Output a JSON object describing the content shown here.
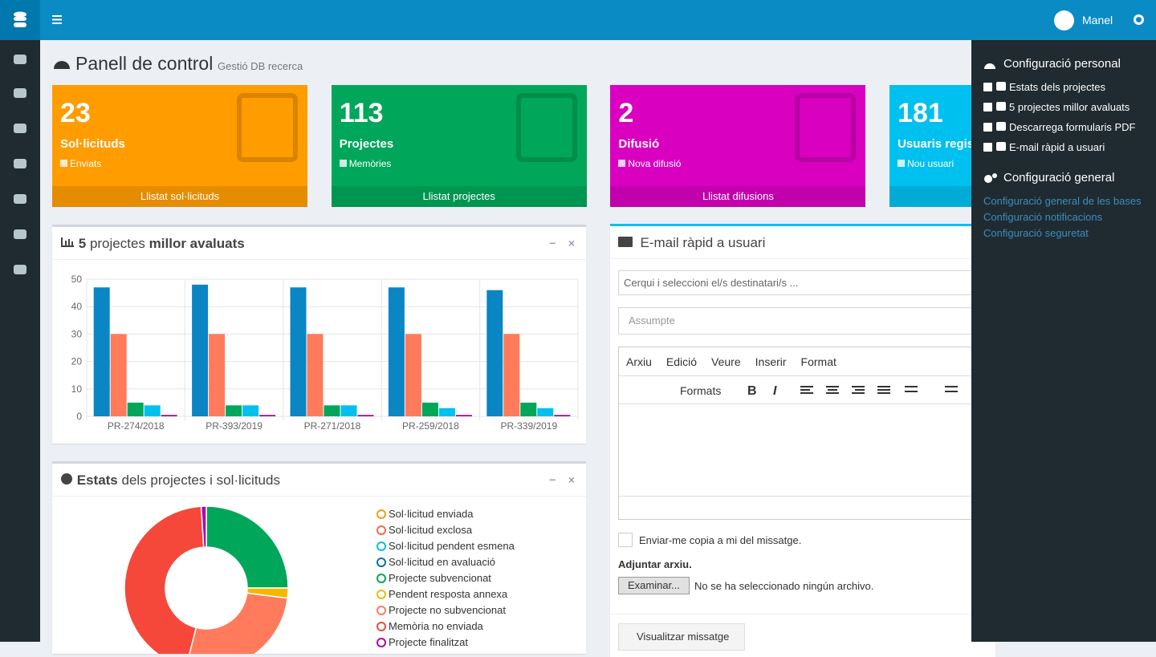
{
  "header": {
    "user": "Manel"
  },
  "page": {
    "title": "Panell de control",
    "subtitle": "Gestió DB recerca"
  },
  "stat_boxes": [
    {
      "value": 23,
      "title": "Sol·licituds",
      "subtitle": "Enviats",
      "link": "Llistat sol·licituds",
      "color": "#ff9c00"
    },
    {
      "value": 113,
      "title": "Projectes",
      "subtitle": "Memòries",
      "link": "Llistat projectes",
      "color": "#00a65a"
    },
    {
      "value": 2,
      "title": "Difusió",
      "subtitle": "Nova difusió",
      "link": "Llistat difusions",
      "color": "#d900c0"
    },
    {
      "value": 181,
      "title": "Usuaris registrats",
      "subtitle": "Nou usuari",
      "color": "#00c0ef"
    }
  ],
  "chart_data": [
    {
      "type": "bar",
      "title_parts": [
        "5",
        "projectes",
        "millor avaluats"
      ],
      "categories": [
        "PR-274/2018",
        "PR-393/2019",
        "PR-271/2018",
        "PR-259/2018",
        "PR-339/2019"
      ],
      "series": [
        {
          "color": "#0a86c4",
          "values": [
            47,
            48,
            47,
            47,
            46
          ]
        },
        {
          "color": "#ff7b5c",
          "values": [
            30,
            30,
            30,
            30,
            30
          ]
        },
        {
          "color": "#00a65a",
          "values": [
            5,
            4,
            4,
            5,
            5
          ]
        },
        {
          "color": "#00c0ef",
          "values": [
            4,
            4,
            4,
            3,
            3
          ]
        },
        {
          "color": "#a0009a",
          "values": [
            0.5,
            0.5,
            0.5,
            0.5,
            0.5
          ]
        }
      ],
      "ylim": [
        0,
        50
      ],
      "yticks": [
        0,
        10,
        20,
        30,
        40,
        50
      ],
      "grid": true
    },
    {
      "type": "pie",
      "title_parts": [
        "Estats",
        "dels projectes i sol·licituds"
      ],
      "categories": [
        "Sol·licitud enviada",
        "Sol·licitud exclosa",
        "Sol·licitud pendent esmena",
        "Sol·licitud en avaluació",
        "Projecte subvencionat",
        "Pendent resposta annexa",
        "Projecte no subvencionat",
        "Memòria no enviada",
        "Projecte finalitzat"
      ],
      "values": [
        0,
        0,
        0,
        0,
        25,
        2,
        27,
        45,
        1
      ],
      "colors": [
        "#f39c12",
        "#f56954",
        "#00c0ef",
        "#0073b7",
        "#00a65a",
        "#f5b800",
        "#ff7b5c",
        "#f5483b",
        "#b000b0"
      ]
    }
  ],
  "email": {
    "title": "E-mail ràpid a usuari",
    "recipients": "Cerqui i seleccioni el/s destinatari/s ...",
    "subject": "Assumpte",
    "menu": [
      "Arxiu",
      "Edició",
      "Veure",
      "Inserir",
      "Format"
    ],
    "formats": "Formats",
    "copy": "Enviar-me copia a mi del missatge.",
    "attach": "Adjuntar arxiu.",
    "browse": "Examinar...",
    "no_file": "No se ha seleccionado ningún archivo.",
    "preview": "Visualitzar missatge"
  },
  "control_sidebar": {
    "personal_title": "Configuració personal",
    "personal_items": [
      "Estats dels projectes",
      "5 projectes millor avaluats",
      "Descarrega formularis PDF",
      "E-mail ràpid a usuari"
    ],
    "general_title": "Configuració general",
    "general_links": [
      "Configuració general de les bases",
      "Configuració notificacions",
      "Configuració seguretat"
    ]
  }
}
